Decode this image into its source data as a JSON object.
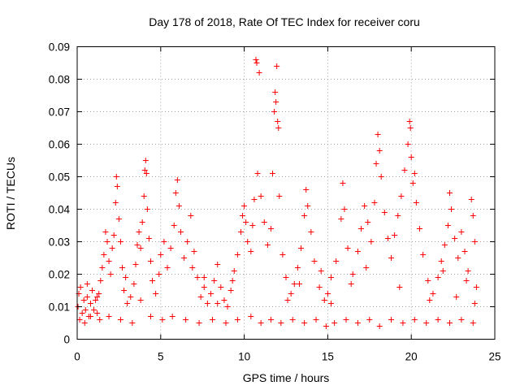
{
  "chart_data": {
    "type": "scatter",
    "title": "Day 178 of 2018, Rate Of TEC Index for receiver coru",
    "xlabel": "GPS time / hours",
    "ylabel": "ROTI / TECUs",
    "xlim": [
      0,
      25
    ],
    "ylim": [
      0,
      0.09
    ],
    "xticks": [
      "0",
      "5",
      "10",
      "15",
      "20",
      "25"
    ],
    "yticks": [
      "0",
      "0.01",
      "0.02",
      "0.03",
      "0.04",
      "0.05",
      "0.06",
      "0.07",
      "0.08",
      "0.09"
    ],
    "grid": true,
    "marker": "+",
    "color": "#ff0000",
    "series": [
      {
        "points": [
          [
            0.05,
            0.01
          ],
          [
            0.1,
            0.014
          ],
          [
            0.2,
            0.016
          ],
          [
            0.3,
            0.008
          ],
          [
            0.4,
            0.012
          ],
          [
            0.5,
            0.009
          ],
          [
            0.6,
            0.013
          ],
          [
            0.7,
            0.007
          ],
          [
            0.8,
            0.011
          ],
          [
            0.9,
            0.015
          ],
          [
            1.0,
            0.009
          ],
          [
            1.1,
            0.012
          ],
          [
            1.2,
            0.008
          ],
          [
            1.3,
            0.014
          ],
          [
            1.4,
            0.018
          ],
          [
            1.5,
            0.022
          ],
          [
            1.6,
            0.026
          ],
          [
            1.7,
            0.033
          ],
          [
            1.8,
            0.03
          ],
          [
            1.9,
            0.024
          ],
          [
            2.0,
            0.02
          ],
          [
            2.1,
            0.028
          ],
          [
            2.2,
            0.032
          ],
          [
            2.3,
            0.042
          ],
          [
            2.35,
            0.05
          ],
          [
            2.4,
            0.047
          ],
          [
            2.5,
            0.037
          ],
          [
            2.6,
            0.03
          ],
          [
            2.7,
            0.022
          ],
          [
            2.8,
            0.015
          ],
          [
            3.0,
            0.011
          ],
          [
            3.2,
            0.013
          ],
          [
            3.4,
            0.017
          ],
          [
            3.5,
            0.023
          ],
          [
            3.6,
            0.029
          ],
          [
            3.7,
            0.033
          ],
          [
            3.8,
            0.028
          ],
          [
            3.9,
            0.036
          ],
          [
            4.0,
            0.044
          ],
          [
            4.05,
            0.052
          ],
          [
            4.1,
            0.055
          ],
          [
            4.15,
            0.051
          ],
          [
            4.2,
            0.04
          ],
          [
            4.3,
            0.031
          ],
          [
            4.4,
            0.024
          ],
          [
            4.5,
            0.018
          ],
          [
            4.7,
            0.014
          ],
          [
            4.9,
            0.02
          ],
          [
            5.0,
            0.026
          ],
          [
            5.2,
            0.03
          ],
          [
            5.4,
            0.022
          ],
          [
            5.6,
            0.028
          ],
          [
            5.8,
            0.035
          ],
          [
            5.9,
            0.045
          ],
          [
            6.0,
            0.049
          ],
          [
            6.1,
            0.041
          ],
          [
            6.2,
            0.033
          ],
          [
            6.4,
            0.025
          ],
          [
            6.6,
            0.03
          ],
          [
            6.8,
            0.038
          ],
          [
            7.0,
            0.027
          ],
          [
            7.2,
            0.019
          ],
          [
            7.4,
            0.013
          ],
          [
            7.6,
            0.016
          ],
          [
            7.8,
            0.011
          ],
          [
            8.0,
            0.014
          ],
          [
            8.2,
            0.018
          ],
          [
            8.4,
            0.023
          ],
          [
            8.6,
            0.016
          ],
          [
            8.8,
            0.012
          ],
          [
            9.0,
            0.01
          ],
          [
            9.2,
            0.015
          ],
          [
            9.4,
            0.021
          ],
          [
            9.6,
            0.026
          ],
          [
            9.8,
            0.033
          ],
          [
            9.9,
            0.038
          ],
          [
            10.0,
            0.041
          ],
          [
            10.1,
            0.036
          ],
          [
            10.2,
            0.03
          ],
          [
            10.4,
            0.027
          ],
          [
            10.5,
            0.035
          ],
          [
            10.6,
            0.043
          ],
          [
            10.7,
            0.086
          ],
          [
            10.75,
            0.085
          ],
          [
            10.8,
            0.051
          ],
          [
            10.9,
            0.082
          ],
          [
            11.0,
            0.044
          ],
          [
            11.2,
            0.036
          ],
          [
            11.4,
            0.029
          ],
          [
            11.6,
            0.034
          ],
          [
            11.7,
            0.051
          ],
          [
            11.8,
            0.07
          ],
          [
            11.85,
            0.076
          ],
          [
            11.9,
            0.073
          ],
          [
            11.95,
            0.084
          ],
          [
            12.0,
            0.067
          ],
          [
            12.05,
            0.065
          ],
          [
            12.1,
            0.044
          ],
          [
            12.3,
            0.026
          ],
          [
            12.5,
            0.019
          ],
          [
            12.8,
            0.014
          ],
          [
            13.0,
            0.017
          ],
          [
            13.2,
            0.022
          ],
          [
            13.4,
            0.028
          ],
          [
            13.6,
            0.038
          ],
          [
            13.7,
            0.046
          ],
          [
            13.8,
            0.041
          ],
          [
            14.0,
            0.033
          ],
          [
            14.2,
            0.024
          ],
          [
            14.5,
            0.016
          ],
          [
            14.8,
            0.012
          ],
          [
            15.0,
            0.014
          ],
          [
            15.2,
            0.019
          ],
          [
            15.5,
            0.024
          ],
          [
            15.8,
            0.037
          ],
          [
            15.9,
            0.048
          ],
          [
            16.0,
            0.04
          ],
          [
            16.2,
            0.028
          ],
          [
            16.5,
            0.02
          ],
          [
            16.8,
            0.027
          ],
          [
            17.0,
            0.034
          ],
          [
            17.2,
            0.041
          ],
          [
            17.4,
            0.036
          ],
          [
            17.6,
            0.03
          ],
          [
            17.8,
            0.042
          ],
          [
            17.9,
            0.054
          ],
          [
            18.0,
            0.063
          ],
          [
            18.1,
            0.058
          ],
          [
            18.2,
            0.05
          ],
          [
            18.4,
            0.039
          ],
          [
            18.6,
            0.031
          ],
          [
            18.8,
            0.025
          ],
          [
            19.0,
            0.032
          ],
          [
            19.2,
            0.038
          ],
          [
            19.4,
            0.044
          ],
          [
            19.6,
            0.052
          ],
          [
            19.8,
            0.06
          ],
          [
            19.9,
            0.067
          ],
          [
            19.95,
            0.065
          ],
          [
            20.0,
            0.056
          ],
          [
            20.1,
            0.048
          ],
          [
            20.2,
            0.051
          ],
          [
            20.3,
            0.042
          ],
          [
            20.5,
            0.034
          ],
          [
            20.7,
            0.026
          ],
          [
            21.0,
            0.018
          ],
          [
            21.3,
            0.014
          ],
          [
            21.6,
            0.019
          ],
          [
            21.8,
            0.024
          ],
          [
            22.0,
            0.029
          ],
          [
            22.2,
            0.035
          ],
          [
            22.3,
            0.045
          ],
          [
            22.4,
            0.04
          ],
          [
            22.6,
            0.031
          ],
          [
            22.8,
            0.025
          ],
          [
            23.0,
            0.033
          ],
          [
            23.2,
            0.027
          ],
          [
            23.4,
            0.021
          ],
          [
            23.6,
            0.043
          ],
          [
            23.7,
            0.038
          ],
          [
            23.8,
            0.03
          ],
          [
            23.9,
            0.016
          ],
          [
            0.15,
            0.006
          ],
          [
            0.45,
            0.005
          ],
          [
            0.8,
            0.007
          ],
          [
            1.35,
            0.006
          ],
          [
            1.9,
            0.007
          ],
          [
            2.6,
            0.006
          ],
          [
            3.3,
            0.005
          ],
          [
            4.4,
            0.007
          ],
          [
            5.1,
            0.006
          ],
          [
            5.7,
            0.007
          ],
          [
            6.5,
            0.006
          ],
          [
            7.3,
            0.005
          ],
          [
            8.1,
            0.006
          ],
          [
            8.9,
            0.005
          ],
          [
            9.6,
            0.006
          ],
          [
            10.4,
            0.007
          ],
          [
            11.0,
            0.005
          ],
          [
            11.6,
            0.006
          ],
          [
            12.2,
            0.005
          ],
          [
            12.9,
            0.006
          ],
          [
            13.6,
            0.005
          ],
          [
            14.3,
            0.006
          ],
          [
            14.9,
            0.004
          ],
          [
            15.4,
            0.005
          ],
          [
            16.1,
            0.006
          ],
          [
            16.8,
            0.005
          ],
          [
            17.5,
            0.006
          ],
          [
            18.1,
            0.004
          ],
          [
            18.8,
            0.006
          ],
          [
            19.5,
            0.005
          ],
          [
            20.2,
            0.006
          ],
          [
            20.9,
            0.005
          ],
          [
            21.6,
            0.006
          ],
          [
            22.3,
            0.005
          ],
          [
            23.0,
            0.006
          ],
          [
            23.7,
            0.005
          ],
          [
            0.6,
            0.017
          ],
          [
            1.2,
            0.013
          ],
          [
            2.9,
            0.019
          ],
          [
            3.8,
            0.012
          ],
          [
            6.9,
            0.022
          ],
          [
            7.6,
            0.019
          ],
          [
            8.4,
            0.011
          ],
          [
            9.3,
            0.018
          ],
          [
            12.6,
            0.012
          ],
          [
            13.3,
            0.017
          ],
          [
            14.6,
            0.021
          ],
          [
            15.2,
            0.011
          ],
          [
            16.4,
            0.017
          ],
          [
            17.3,
            0.022
          ],
          [
            19.3,
            0.016
          ],
          [
            21.1,
            0.012
          ],
          [
            21.9,
            0.021
          ],
          [
            22.7,
            0.013
          ],
          [
            23.3,
            0.018
          ],
          [
            23.8,
            0.011
          ]
        ]
      }
    ]
  }
}
